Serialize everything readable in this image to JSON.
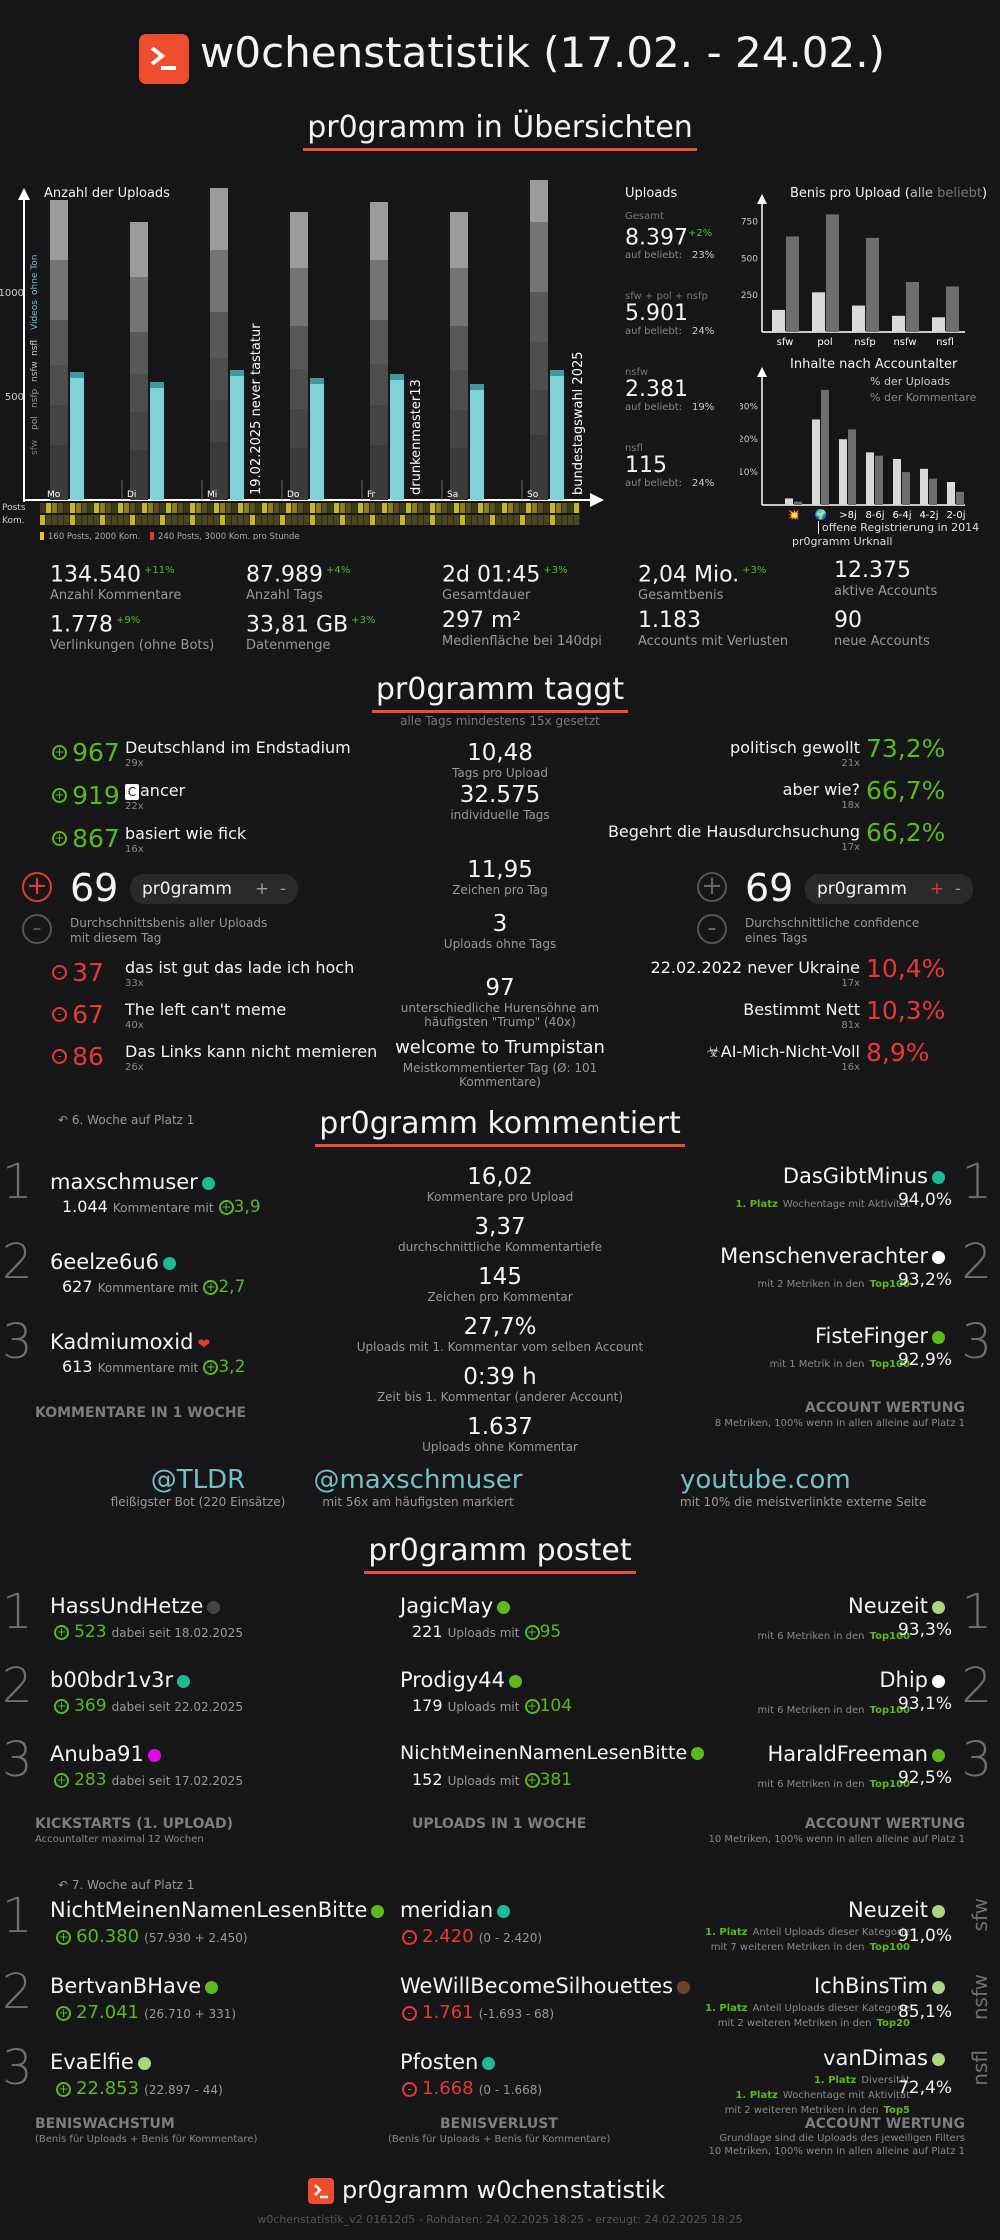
{
  "title": "w0chenstatistik (17.02. - 24.02.)",
  "s1": {
    "heading": "pr0gramm in Übersichten",
    "uploads_chart": {
      "title": "Anzahl der Uploads",
      "y_ticks": [
        "1000",
        "500"
      ],
      "days": [
        "Mo",
        "Di",
        "Mi",
        "Do",
        "Fr",
        "Sa",
        "So"
      ],
      "annotations": [
        "19.02.2025 never tastatur",
        "drunkenmaster13",
        "bundestagswahl 2025"
      ],
      "legend_rows": [
        "Posts",
        "Kom."
      ],
      "legend_posts": "160 Posts, 2000 Kom.",
      "legend_kom": "240 Posts, 3000 Kom. pro Stunde",
      "side_labels": [
        "sfw",
        "pol",
        "nsfp",
        "nsfw",
        "nsfl",
        "Videos",
        "ohne Ton"
      ]
    },
    "uploads": {
      "title": "Uploads",
      "gesamt": "Gesamt",
      "gesamt_val": "8.397",
      "gesamt_delta": "+2%",
      "gesamt_beliebt": "23%",
      "g2_label": "sfw + pol + nsfp",
      "g2_val": "5.901",
      "g2_beliebt": "24%",
      "g3_label": "nsfw",
      "g3_val": "2.381",
      "g3_beliebt": "19%",
      "g4_label": "nsfl",
      "g4_val": "115",
      "g4_beliebt": "24%",
      "auf_beliebt": "auf beliebt:"
    },
    "benis_chart": {
      "title_a": "Benis pro Upload (",
      "title_alle": "alle",
      "title_b": "beliebt",
      "title_c": ")",
      "y_ticks": [
        "750",
        "500",
        "250"
      ],
      "categories": [
        "sfw",
        "pol",
        "nsfp",
        "nsfw",
        "nsfl"
      ],
      "alle": [
        150,
        270,
        180,
        110,
        100
      ],
      "beliebt": [
        650,
        800,
        640,
        340,
        310
      ]
    },
    "age_chart": {
      "title": "Inhalte nach Accountalter",
      "legend1": "% der Uploads",
      "legend2": "% der Kommentare",
      "y_ticks": [
        "30%",
        "20%",
        "10%"
      ],
      "categories": [
        "💥",
        "🌍",
        ">8j",
        "8-6j",
        "6-4j",
        "4-2j",
        "2-0j"
      ],
      "uploads": [
        2,
        26,
        20,
        16,
        14,
        11,
        7
      ],
      "kommentare": [
        1,
        35,
        23,
        15,
        10,
        8,
        4
      ],
      "note1": "offene Registrierung in 2014",
      "note2": "pr0gramm Urknall"
    },
    "stats": [
      {
        "val": "134.540",
        "delta": "+11%",
        "label": "Anzahl Kommentare"
      },
      {
        "val": "87.989",
        "delta": "+4%",
        "label": "Anzahl Tags"
      },
      {
        "val": "2d 01:45",
        "delta": "+3%",
        "label": "Gesamtdauer"
      },
      {
        "val": "2,04 Mio.",
        "delta": "+3%",
        "label": "Gesamtbenis"
      },
      {
        "val": "12.375",
        "delta": "",
        "label": "aktive Accounts"
      },
      {
        "val": "1.778",
        "delta": "+9%",
        "label": "Verlinkungen (ohne Bots)"
      },
      {
        "val": "33,81 GB",
        "delta": "+3%",
        "label": "Datenmenge"
      },
      {
        "val": "297 m²",
        "delta": "",
        "label": "Medienfläche bei 140dpi"
      },
      {
        "val": "1.183",
        "delta": "",
        "label": "Accounts mit Verlusten"
      },
      {
        "val": "90",
        "delta": "",
        "label": "neue Accounts"
      }
    ]
  },
  "s2": {
    "heading": "pr0gramm taggt",
    "sub": "alle Tags mindestens 15x gesetzt",
    "top_tags": [
      {
        "score": "967",
        "name": "Deutschland im Endstadium",
        "count": "29x"
      },
      {
        "score": "919",
        "name": "ancer",
        "count": "22x"
      },
      {
        "score": "867",
        "name": "basiert wie fick",
        "count": "16x"
      }
    ],
    "flop_tags": [
      {
        "score": "37",
        "name": "das ist gut das lade ich hoch",
        "count": "33x"
      },
      {
        "score": "67",
        "name": "The left can't meme",
        "count": "40x"
      },
      {
        "score": "86",
        "name": "Das Links kann nicht memieren",
        "count": "26x"
      }
    ],
    "conf_top": [
      {
        "pct": "73,2%",
        "name": "politisch gewollt",
        "count": "21x"
      },
      {
        "pct": "66,7%",
        "name": "aber wie?",
        "count": "18x"
      },
      {
        "pct": "66,2%",
        "name": "Begehrt die Hausdurchsuchung",
        "count": "17x"
      }
    ],
    "conf_flop": [
      {
        "pct": "10,4%",
        "name": "22.02.2022 never Ukraine",
        "count": "17x"
      },
      {
        "pct": "10,3%",
        "name": "Bestimmt Nett",
        "count": "81x"
      },
      {
        "pct": "8,9%",
        "name": "AI-Mich-Nicht-Voll",
        "count": "16x"
      }
    ],
    "left_big": "69",
    "left_pill": "pr0gramm",
    "left_desc": "Durchschnittsbenis aller Uploads mit diesem Tag",
    "right_big": "69",
    "right_pill": "pr0gramm",
    "right_desc": "Durchschnittliche confidence eines Tags",
    "mid": [
      {
        "val": "10,48",
        "label": "Tags pro Upload"
      },
      {
        "val": "32.575",
        "label": "individuelle Tags"
      },
      {
        "val": "11,95",
        "label": "Zeichen pro Tag"
      },
      {
        "val": "3",
        "label": "Uploads ohne Tags"
      },
      {
        "val": "97",
        "label": "unterschiedliche Hurensöhne am häufigsten \"Trump\" (40x)"
      },
      {
        "val": "welcome to Trumpistan",
        "label": "Meistkommentierter Tag (Ø: 101 Kommentare)"
      }
    ]
  },
  "s3": {
    "heading": "pr0gramm kommentiert",
    "note": "6. Woche auf Platz 1",
    "left": [
      {
        "rank": "1",
        "name": "maxschmuser",
        "count": "1.044",
        "mid": "Kommentare mit",
        "score": "3,9",
        "dot": "#1db992"
      },
      {
        "rank": "2",
        "name": "6eelze6u6",
        "count": "627",
        "mid": "Kommentare mit",
        "score": "2,7",
        "dot": "#1db992"
      },
      {
        "rank": "3",
        "name": "Kadmiumoxid",
        "count": "613",
        "mid": "Kommentare mit",
        "score": "3,2",
        "dot": "heart"
      }
    ],
    "left_sect": "KOMMENTARE IN 1 WOCHE",
    "mid": [
      {
        "val": "16,02",
        "label": "Kommentare pro Upload"
      },
      {
        "val": "3,37",
        "label": "durchschnittliche Kommentartiefe"
      },
      {
        "val": "145",
        "label": "Zeichen pro Kommentar"
      },
      {
        "val": "27,7%",
        "label": "Uploads mit 1. Kommentar vom selben Account"
      },
      {
        "val": "0:39 h",
        "label": "Zeit bis 1. Kommentar (anderer Account)"
      },
      {
        "val": "1.637",
        "label": "Uploads ohne Kommentar"
      }
    ],
    "right": [
      {
        "rank": "1",
        "name": "DasGibtMinus",
        "dot": "#1db992",
        "badge": "1. Platz",
        "desc": "Wochentage mit Aktivität",
        "pct": "94,0%"
      },
      {
        "rank": "2",
        "name": "Menschenverachter",
        "dot": "#ffffff",
        "pre": "mit 2 Metriken in den",
        "top": "Top100",
        "pct": "93,2%"
      },
      {
        "rank": "3",
        "name": "FisteFinger",
        "dot": "#5bb91c",
        "pre": "mit 1 Metrik in den",
        "top": "Top100",
        "pct": "92,9%"
      }
    ],
    "right_sect": "ACCOUNT WERTUNG",
    "right_sub": "8 Metriken, 100% wenn in allen alleine auf Platz 1",
    "links": [
      {
        "val": "@TLDR",
        "label": "fleißigster Bot (220 Einsätze)"
      },
      {
        "val": "@maxschmuser",
        "label": "mit 56x am häufigsten markiert"
      },
      {
        "val": "youtube.com",
        "label": "mit 10% die meistverlinkte externe Seite"
      }
    ]
  },
  "s4": {
    "heading": "pr0gramm postet",
    "kick": [
      {
        "rank": "1",
        "name": "HassUndHetze",
        "dot": "#444",
        "score": "523",
        "since": "dabei seit 18.02.2025"
      },
      {
        "rank": "2",
        "name": "b00bdr1v3r",
        "dot": "#1db992",
        "score": "369",
        "since": "dabei seit 22.02.2025"
      },
      {
        "rank": "3",
        "name": "Anuba91",
        "dot": "#e108e9",
        "score": "283",
        "since": "dabei seit 17.02.2025"
      }
    ],
    "kick_sect": "KICKSTARTS (1. UPLOAD)",
    "kick_sub": "Accountalter maximal 12 Wochen",
    "up": [
      {
        "name": "JagicMay",
        "dot": "#5bb91c",
        "count": "221",
        "score": "95"
      },
      {
        "name": "Prodigy44",
        "dot": "#5bb91c",
        "count": "179",
        "score": "104"
      },
      {
        "name": "NichtMeinenNamenLesenBitte",
        "dot": "#5bb91c",
        "count": "152",
        "score": "381"
      }
    ],
    "up_mid": "Uploads mit",
    "up_sect": "UPLOADS IN 1 WOCHE",
    "acc": [
      {
        "rank": "1",
        "name": "Neuzeit",
        "dot": "#add581",
        "pre": "mit 6 Metriken in den",
        "top": "Top100",
        "pct": "93,3%"
      },
      {
        "rank": "2",
        "name": "Dhip",
        "dot": "#ffffff",
        "pre": "mit 6 Metriken in den",
        "top": "Top100",
        "pct": "93,1%"
      },
      {
        "rank": "3",
        "name": "HaraldFreeman",
        "dot": "#5bb91c",
        "pre": "mit 6 Metriken in den",
        "top": "Top100",
        "pct": "92,5%"
      }
    ],
    "acc_sect": "ACCOUNT WERTUNG",
    "acc_sub": "10 Metriken, 100% wenn in allen alleine auf Platz 1",
    "note": "7. Woche auf Platz 1",
    "gain": [
      {
        "rank": "1",
        "name": "NichtMeinenNamenLesenBitte",
        "dot": "#5bb91c",
        "score": "60.380",
        "detail": "(57.930 + 2.450)"
      },
      {
        "rank": "2",
        "name": "BertvanBHave",
        "dot": "#5bb91c",
        "score": "27.041",
        "detail": "(26.710 + 331)"
      },
      {
        "rank": "3",
        "name": "EvaElfie",
        "dot": "#add581",
        "score": "22.853",
        "detail": "(22.897 - 44)"
      }
    ],
    "gain_sect": "BENISWACHSTUM",
    "gain_sub": "(Benis für Uploads + Benis für Kommentare)",
    "loss": [
      {
        "name": "meridian",
        "dot": "#1db992",
        "score": "2.420",
        "detail": "(0 - 2.420)"
      },
      {
        "name": "WeWillBecomeSilhouettes",
        "dot": "#6c432b",
        "score": "1.761",
        "detail": "(-1.693 - 68)"
      },
      {
        "name": "Pfosten",
        "dot": "#1db992",
        "score": "1.668",
        "detail": "(0 - 1.668)"
      }
    ],
    "loss_sect": "BENISVERLUST",
    "loss_sub": "(Benis für Uploads + Benis für Kommentare)",
    "filt": [
      {
        "cat": "sfw",
        "name": "Neuzeit",
        "dot": "#add581",
        "l1b": "1. Platz",
        "l1": "Anteil Uploads dieser Kategorie",
        "l2": "mit 7 weiteren Metriken in den",
        "top": "Top100",
        "pct": "91,0%"
      },
      {
        "cat": "nsfw",
        "name": "IchBinsTim",
        "dot": "#add581",
        "l1b": "1. Platz",
        "l1": "Anteil Uploads dieser Kategorie",
        "l2": "mit 2 weiteren Metriken in den",
        "top": "Top20",
        "pct": "85,1%"
      },
      {
        "cat": "nsfl",
        "name": "vanDimas",
        "dot": "#add581",
        "l1b": "1. Platz",
        "l1": "Diversität",
        "l1b2": "1. Platz",
        "l1x": "Wochentage mit Aktivität",
        "l2": "mit 2 weiteren Metriken in den",
        "top": "Top5",
        "pct": "72,4%"
      }
    ],
    "filt_sect": "ACCOUNT WERTUNG",
    "filt_sub1": "Grundlage sind die Uploads des jeweiligen Filters",
    "filt_sub2": "10 Metriken, 100% wenn in allen alleine auf Platz 1"
  },
  "footer": {
    "title": "pr0gramm w0chenstatistik",
    "meta": "w0chenstatistik_v2 01612d5 - Rohdaten: 24.02.2025 18:25 - erzeugt: 24.02.2025 18:25"
  },
  "colors": {
    "accent": "#ee4d2e",
    "green": "#5bb91c",
    "red": "#e53935",
    "teal": "#75c0c7"
  }
}
